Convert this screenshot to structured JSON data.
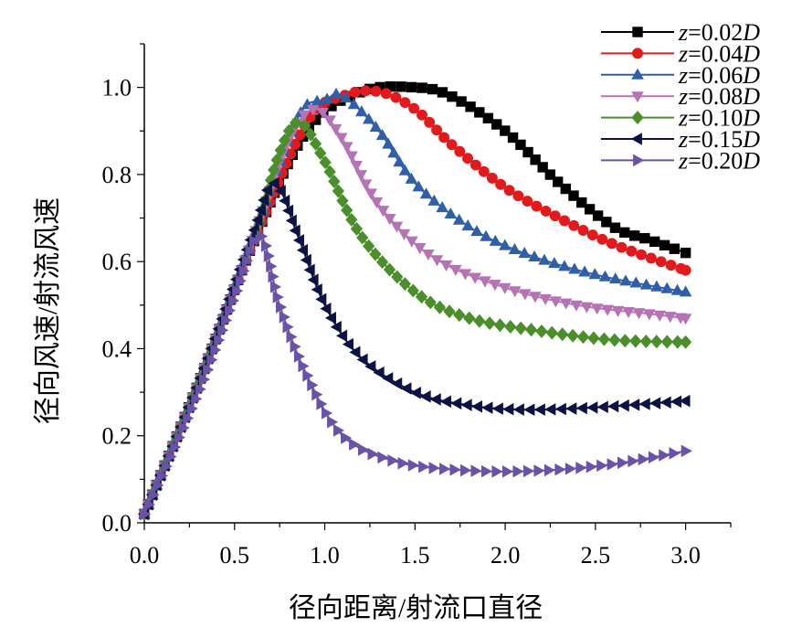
{
  "chart_data": {
    "type": "line",
    "xlabel": "径向距离/射流口直径",
    "ylabel": "径向风速/射流风速",
    "xlim": [
      0,
      3.0
    ],
    "ylim": [
      0,
      1.1
    ],
    "x_ticks": [
      "0.0",
      "0.5",
      "1.0",
      "1.5",
      "2.0",
      "2.5",
      "3.0"
    ],
    "y_ticks": [
      "0.0",
      "0.2",
      "0.4",
      "0.6",
      "0.8",
      "1.0"
    ],
    "legend_position": "top-right",
    "series": [
      {
        "name": "z=0.02D",
        "var": "z",
        "eq": "=0.02",
        "D": "D",
        "color": "#000000",
        "marker": "square",
        "x": [
          0,
          0.3,
          0.6,
          0.9,
          1.2,
          1.5,
          1.7,
          2.0,
          2.3,
          2.6,
          2.8,
          3.0
        ],
        "y": [
          0.02,
          0.32,
          0.64,
          0.9,
          0.99,
          1.0,
          0.98,
          0.9,
          0.78,
          0.68,
          0.65,
          0.62
        ]
      },
      {
        "name": "z=0.04D",
        "var": "z",
        "eq": "=0.04",
        "D": "D",
        "color": "#e31a1c",
        "marker": "circle",
        "x": [
          0,
          0.3,
          0.6,
          0.9,
          1.1,
          1.3,
          1.5,
          1.7,
          2.0,
          2.3,
          2.6,
          3.0
        ],
        "y": [
          0.02,
          0.32,
          0.64,
          0.92,
          0.98,
          0.99,
          0.95,
          0.87,
          0.77,
          0.7,
          0.64,
          0.58
        ]
      },
      {
        "name": "z=0.06D",
        "var": "z",
        "eq": "=0.06",
        "D": "D",
        "color": "#2e5fa8",
        "marker": "triangle-up",
        "x": [
          0,
          0.3,
          0.6,
          0.85,
          1.0,
          1.1,
          1.3,
          1.5,
          1.8,
          2.1,
          2.5,
          3.0
        ],
        "y": [
          0.02,
          0.32,
          0.65,
          0.93,
          0.97,
          0.98,
          0.9,
          0.78,
          0.68,
          0.62,
          0.57,
          0.53
        ]
      },
      {
        "name": "z=0.08D",
        "var": "z",
        "eq": "=0.08",
        "D": "D",
        "color": "#b572b4",
        "marker": "triangle-down",
        "x": [
          0,
          0.3,
          0.6,
          0.8,
          0.95,
          1.1,
          1.3,
          1.6,
          2.0,
          2.4,
          2.8,
          3.0
        ],
        "y": [
          0.02,
          0.32,
          0.65,
          0.88,
          0.95,
          0.88,
          0.73,
          0.61,
          0.54,
          0.5,
          0.48,
          0.47
        ]
      },
      {
        "name": "z=0.10D",
        "var": "z",
        "eq": "=0.10",
        "D": "D",
        "color": "#4a8f2a",
        "marker": "diamond",
        "x": [
          0,
          0.3,
          0.6,
          0.75,
          0.86,
          1.0,
          1.2,
          1.5,
          1.8,
          2.2,
          2.6,
          3.0
        ],
        "y": [
          0.02,
          0.32,
          0.65,
          0.85,
          0.92,
          0.83,
          0.66,
          0.53,
          0.47,
          0.44,
          0.42,
          0.415
        ]
      },
      {
        "name": "z=0.15D",
        "var": "z",
        "eq": "=0.15",
        "D": "D",
        "color": "#0d1245",
        "marker": "triangle-left",
        "x": [
          0,
          0.3,
          0.6,
          0.72,
          0.85,
          1.0,
          1.2,
          1.5,
          1.8,
          2.1,
          2.5,
          3.0
        ],
        "y": [
          0.02,
          0.32,
          0.66,
          0.78,
          0.66,
          0.5,
          0.38,
          0.3,
          0.27,
          0.26,
          0.265,
          0.28
        ]
      },
      {
        "name": "z=0.20D",
        "var": "z",
        "eq": "=0.20",
        "D": "D",
        "color": "#6a52a8",
        "marker": "triangle-right",
        "x": [
          0,
          0.3,
          0.5,
          0.64,
          0.75,
          0.9,
          1.1,
          1.4,
          1.8,
          2.2,
          2.6,
          3.0
        ],
        "y": [
          0.02,
          0.3,
          0.52,
          0.66,
          0.5,
          0.34,
          0.2,
          0.14,
          0.12,
          0.12,
          0.135,
          0.165
        ]
      }
    ]
  }
}
